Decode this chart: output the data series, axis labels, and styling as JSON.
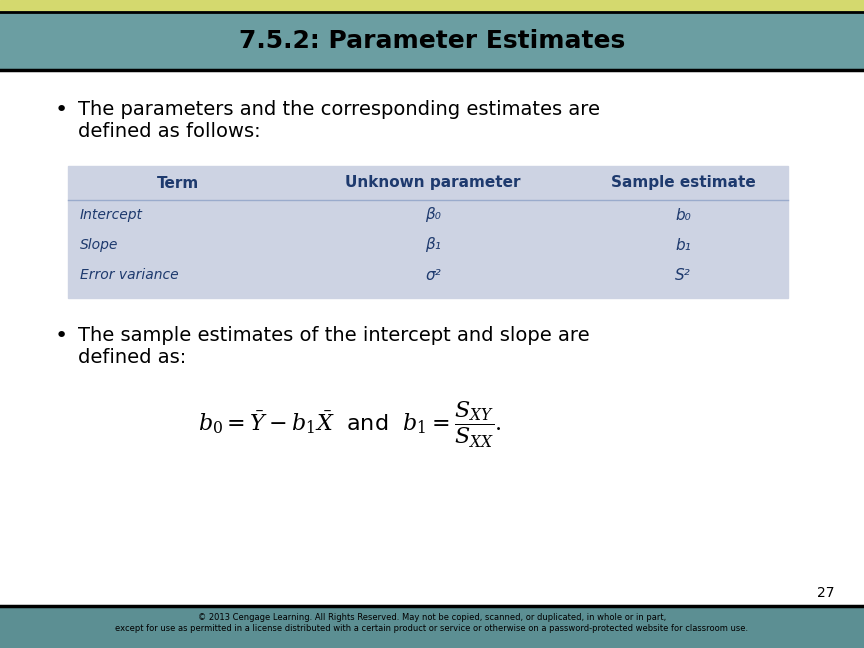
{
  "title": "7.5.2: Parameter Estimates",
  "title_bg_color": "#6b9ea2",
  "title_accent_color": "#d4d96e",
  "title_font_size": 18,
  "body_bg_color": "#ffffff",
  "bullet1_line1": "The parameters and the corresponding estimates are",
  "bullet1_line2": "defined as follows:",
  "bullet2_line1": "The sample estimates of the intercept and slope are",
  "bullet2_line2": "defined as:",
  "table_bg_color": "#cdd3e3",
  "table_header_color": "#1e3a6e",
  "table_row_color": "#1e3a6e",
  "table_headers": [
    "Term",
    "Unknown parameter",
    "Sample estimate"
  ],
  "table_rows": [
    [
      "Intercept",
      "β₀",
      "b₀"
    ],
    [
      "Slope",
      "β₁",
      "b₁"
    ],
    [
      "Error variance",
      "σ²",
      "S²"
    ]
  ],
  "footer_bg_color": "#5c8f93",
  "footer_text": "© 2013 Cengage Learning. All Rights Reserved. May not be copied, scanned, or duplicated, in whole or in part,\nexcept for use as permitted in a license distributed with a certain product or service or otherwise on a password-protected website for classroom use.",
  "page_number": "27",
  "bullet_font_size": 14,
  "text_color": "#000000"
}
